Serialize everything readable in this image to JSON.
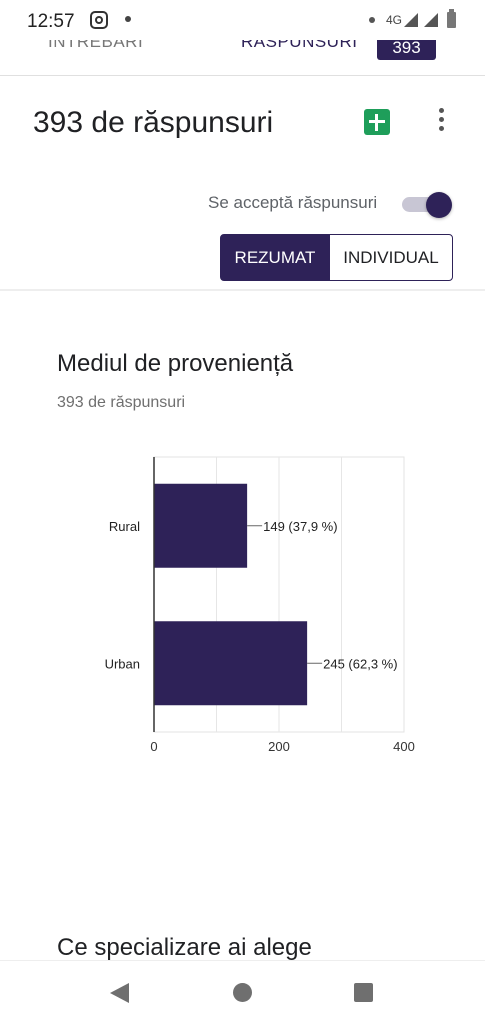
{
  "status_bar": {
    "time": "12:57",
    "network": "4G",
    "icons": [
      "instagram-icon",
      "notification-dot-icon",
      "signal-icon",
      "battery-icon"
    ]
  },
  "tabs": {
    "questions": "ÎNTREBĂRI",
    "responses": "RĂSPUNSURI",
    "responses_count": "393"
  },
  "header": {
    "title": "393 de răspunsuri",
    "accepting_label": "Se acceptă răspunsuri",
    "accepting_on": true,
    "summary_label": "REZUMAT",
    "individual_label": "INDIVIDUAL"
  },
  "question": {
    "title": "Mediul de proveniență",
    "count": "393 de răspunsuri"
  },
  "chart_data": {
    "type": "bar",
    "orientation": "horizontal",
    "categories": [
      "Rural",
      "Urban"
    ],
    "values": [
      149,
      245
    ],
    "data_labels": [
      "149 (37,9 %)",
      "245 (62,3 %)"
    ],
    "xlim": [
      0,
      400
    ],
    "xticks": [
      0,
      200,
      400
    ],
    "grid": true,
    "bar_color": "#2e2258"
  },
  "next_question": {
    "title": "Ce specializare ai alege"
  },
  "colors": {
    "accent": "#2e2258",
    "sheets_green": "#1e9e5a"
  }
}
